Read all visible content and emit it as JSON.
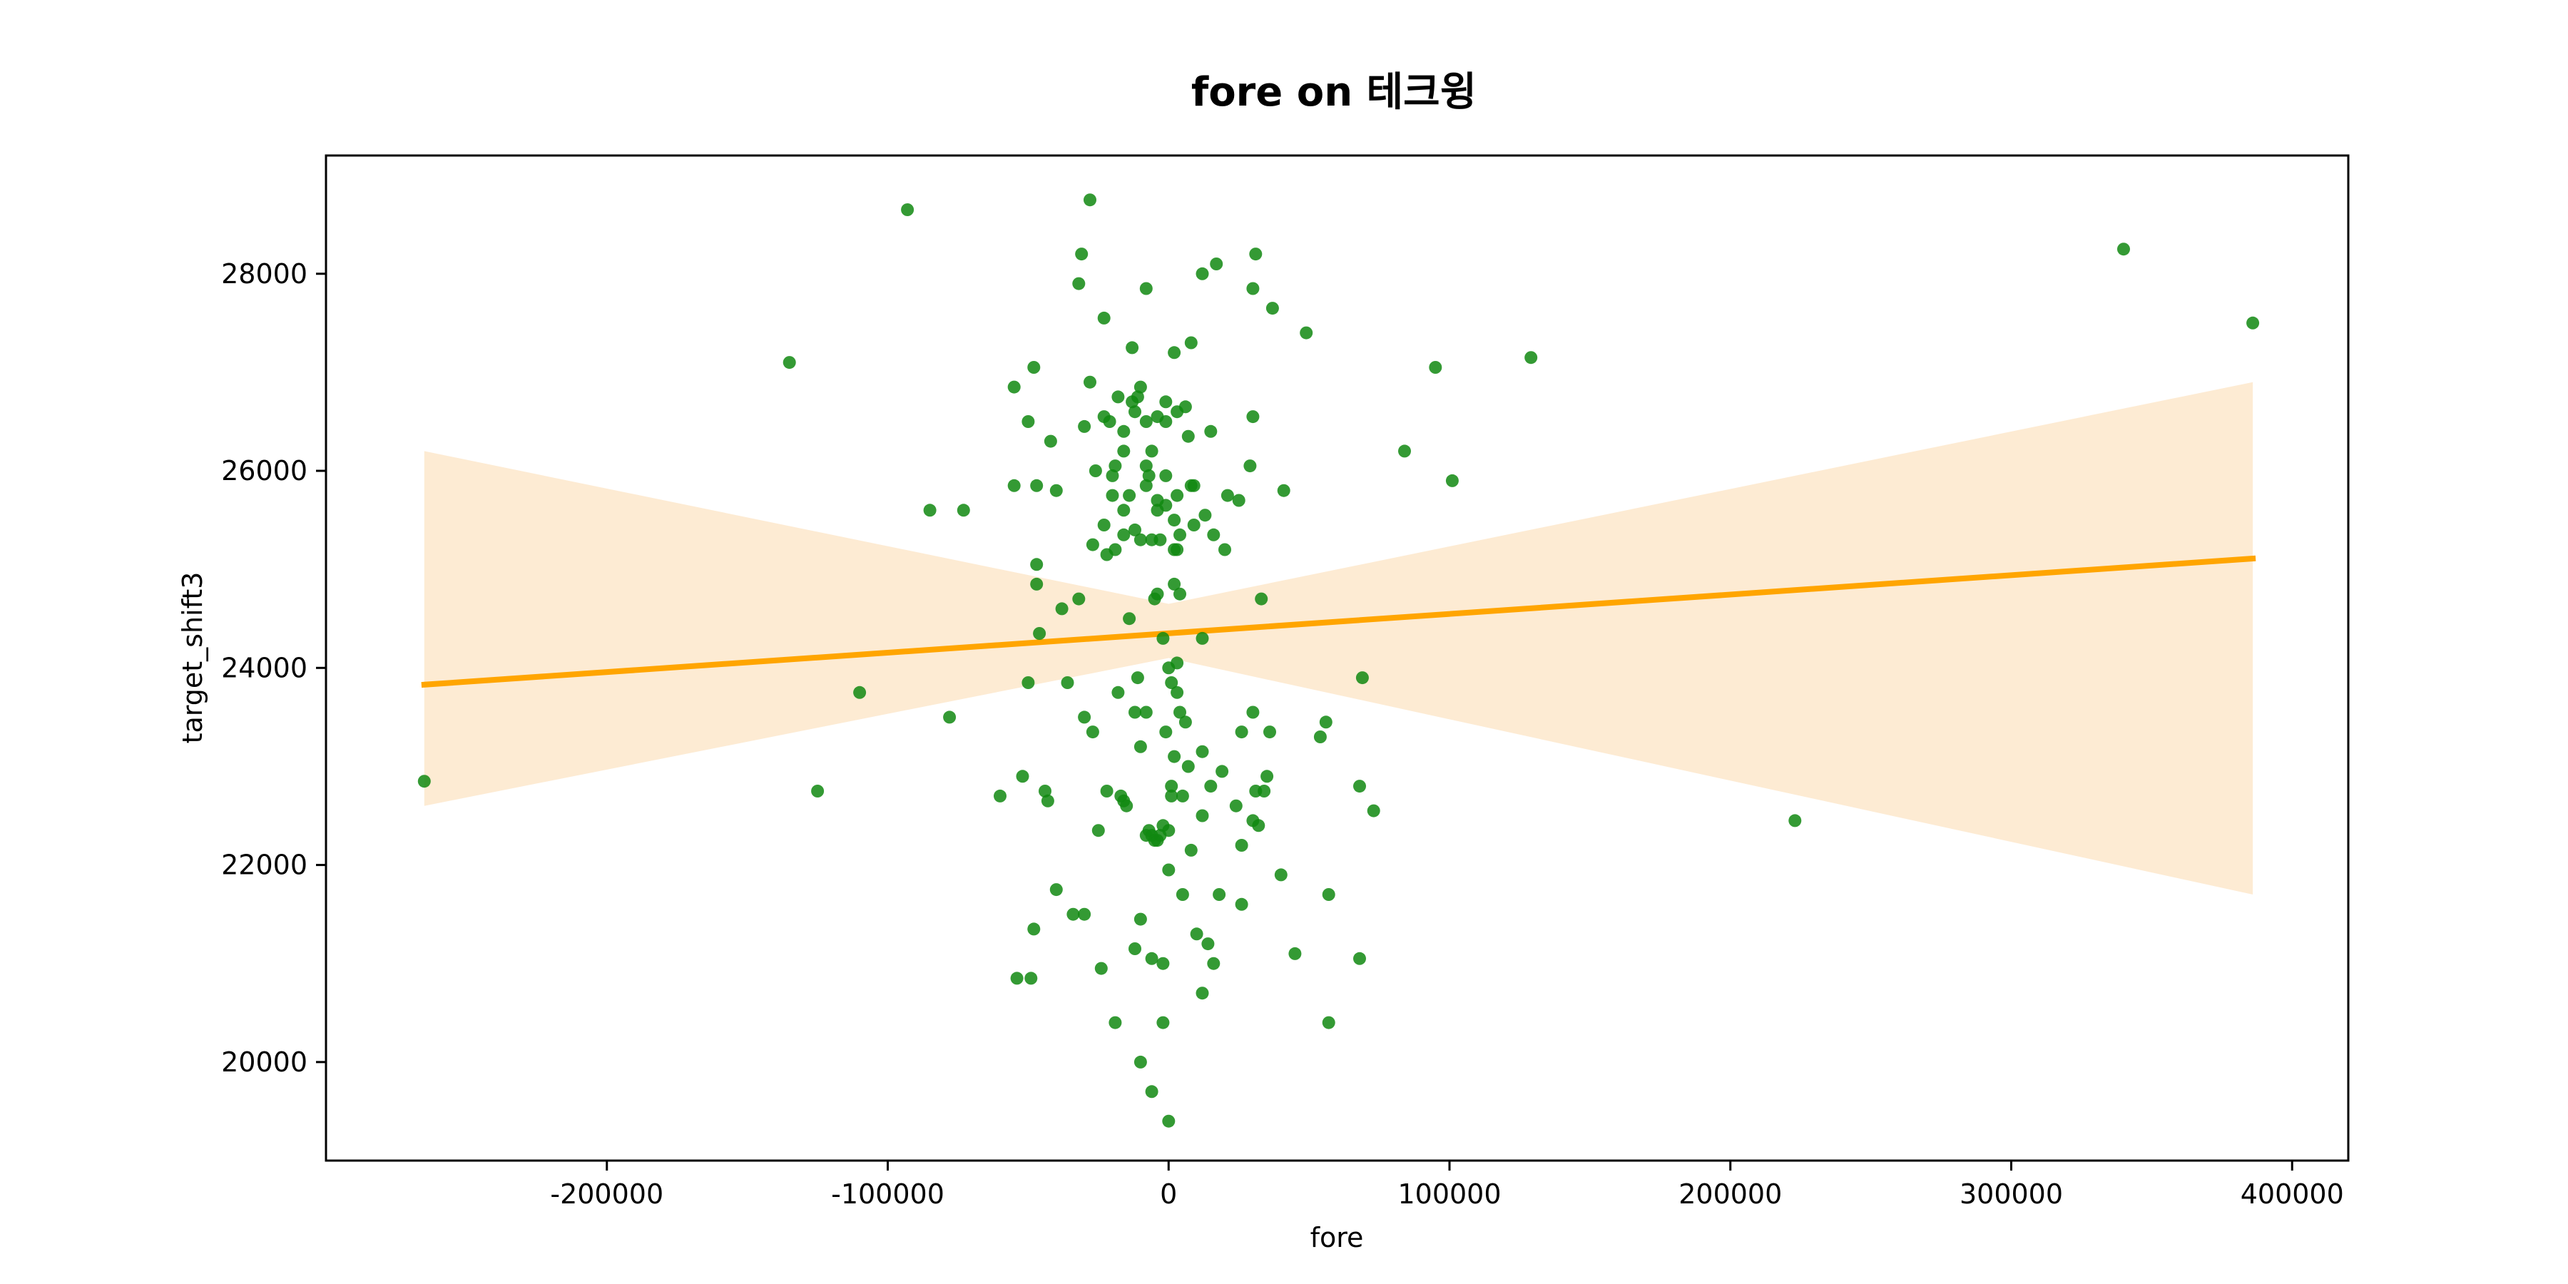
{
  "chart_data": {
    "type": "scatter",
    "title": "fore on 테크윙",
    "xlabel": "fore",
    "ylabel": "target_shift3",
    "xlim": [
      -300000,
      420000
    ],
    "ylim": [
      19000,
      29200
    ],
    "xticks": [
      -200000,
      -100000,
      0,
      100000,
      200000,
      300000,
      400000
    ],
    "yticks": [
      20000,
      22000,
      24000,
      26000,
      28000
    ],
    "grid": false,
    "legend": "none",
    "colors": {
      "points": "#118811",
      "line": "#FFA500",
      "band": "#FDEBD3"
    },
    "regression": {
      "x": [
        -265000,
        386000
      ],
      "y": [
        23830,
        25110
      ]
    },
    "confidence_band": {
      "x": [
        -265000,
        0,
        386000
      ],
      "upper": [
        26200,
        24650,
        26900
      ],
      "lower": [
        22600,
        24100,
        21700
      ]
    },
    "points": [
      [
        -265000,
        22850
      ],
      [
        -135000,
        27100
      ],
      [
        -125000,
        22750
      ],
      [
        -110000,
        23750
      ],
      [
        -93000,
        28650
      ],
      [
        -85000,
        25600
      ],
      [
        -78000,
        23500
      ],
      [
        -73000,
        25600
      ],
      [
        -60000,
        22700
      ],
      [
        -55000,
        26850
      ],
      [
        -55000,
        25850
      ],
      [
        -54000,
        20850
      ],
      [
        -52000,
        22900
      ],
      [
        -50000,
        26500
      ],
      [
        -50000,
        23850
      ],
      [
        -49000,
        20850
      ],
      [
        -48000,
        27050
      ],
      [
        -48000,
        21350
      ],
      [
        -47000,
        25850
      ],
      [
        -47000,
        25050
      ],
      [
        -47000,
        24850
      ],
      [
        -46000,
        24350
      ],
      [
        -44000,
        22750
      ],
      [
        -43000,
        22650
      ],
      [
        -42000,
        26300
      ],
      [
        -40000,
        25800
      ],
      [
        -40000,
        21750
      ],
      [
        -38000,
        24600
      ],
      [
        -36000,
        23850
      ],
      [
        -34000,
        21500
      ],
      [
        -32000,
        24700
      ],
      [
        -32000,
        27900
      ],
      [
        -31000,
        28200
      ],
      [
        -30000,
        26450
      ],
      [
        -30000,
        23500
      ],
      [
        -30000,
        21500
      ],
      [
        -28000,
        28750
      ],
      [
        -28000,
        26900
      ],
      [
        -27000,
        25250
      ],
      [
        -27000,
        23350
      ],
      [
        -26000,
        26000
      ],
      [
        -25000,
        22350
      ],
      [
        -24000,
        20950
      ],
      [
        -23000,
        27550
      ],
      [
        -23000,
        26550
      ],
      [
        -23000,
        25450
      ],
      [
        -22000,
        25150
      ],
      [
        -22000,
        22750
      ],
      [
        -21000,
        26500
      ],
      [
        -20000,
        25750
      ],
      [
        -20000,
        25950
      ],
      [
        -19000,
        26050
      ],
      [
        -19000,
        25200
      ],
      [
        -19000,
        20400
      ],
      [
        -18000,
        26750
      ],
      [
        -18000,
        23750
      ],
      [
        -17000,
        22700
      ],
      [
        -16000,
        26400
      ],
      [
        -16000,
        26200
      ],
      [
        -16000,
        25600
      ],
      [
        -16000,
        25350
      ],
      [
        -16000,
        22650
      ],
      [
        -15000,
        22600
      ],
      [
        -14000,
        25750
      ],
      [
        -14000,
        24500
      ],
      [
        -13000,
        27250
      ],
      [
        -13000,
        26700
      ],
      [
        -12000,
        26600
      ],
      [
        -12000,
        25400
      ],
      [
        -12000,
        23550
      ],
      [
        -12000,
        21150
      ],
      [
        -11000,
        26750
      ],
      [
        -11000,
        23900
      ],
      [
        -10000,
        26850
      ],
      [
        -10000,
        25300
      ],
      [
        -10000,
        23200
      ],
      [
        -10000,
        21450
      ],
      [
        -10000,
        20000
      ],
      [
        -8000,
        27850
      ],
      [
        -8000,
        26500
      ],
      [
        -8000,
        26050
      ],
      [
        -8000,
        25850
      ],
      [
        -8000,
        23550
      ],
      [
        -8000,
        22300
      ],
      [
        -7000,
        25950
      ],
      [
        -7000,
        22350
      ],
      [
        -6000,
        26200
      ],
      [
        -6000,
        25300
      ],
      [
        -6000,
        22300
      ],
      [
        -6000,
        21050
      ],
      [
        -6000,
        19700
      ],
      [
        -5000,
        24700
      ],
      [
        -5000,
        22250
      ],
      [
        -4000,
        26550
      ],
      [
        -4000,
        25700
      ],
      [
        -4000,
        25600
      ],
      [
        -4000,
        24750
      ],
      [
        -4000,
        22250
      ],
      [
        -3000,
        25300
      ],
      [
        -3000,
        22300
      ],
      [
        -2000,
        24300
      ],
      [
        -2000,
        22400
      ],
      [
        -2000,
        21000
      ],
      [
        -2000,
        20400
      ],
      [
        -1000,
        26700
      ],
      [
        -1000,
        26500
      ],
      [
        -1000,
        25950
      ],
      [
        -1000,
        25650
      ],
      [
        -1000,
        23350
      ],
      [
        0,
        24000
      ],
      [
        0,
        22350
      ],
      [
        0,
        21950
      ],
      [
        0,
        19400
      ],
      [
        1000,
        23850
      ],
      [
        1000,
        22800
      ],
      [
        1000,
        22700
      ],
      [
        2000,
        27200
      ],
      [
        2000,
        25500
      ],
      [
        2000,
        25200
      ],
      [
        2000,
        24850
      ],
      [
        2000,
        23100
      ],
      [
        3000,
        26600
      ],
      [
        3000,
        25750
      ],
      [
        3000,
        25200
      ],
      [
        3000,
        24050
      ],
      [
        3000,
        23750
      ],
      [
        4000,
        25350
      ],
      [
        4000,
        24750
      ],
      [
        4000,
        23550
      ],
      [
        5000,
        22700
      ],
      [
        5000,
        21700
      ],
      [
        6000,
        26650
      ],
      [
        6000,
        23450
      ],
      [
        7000,
        26350
      ],
      [
        7000,
        23000
      ],
      [
        8000,
        27300
      ],
      [
        8000,
        25850
      ],
      [
        8000,
        22150
      ],
      [
        9000,
        25850
      ],
      [
        9000,
        25450
      ],
      [
        10000,
        21300
      ],
      [
        12000,
        28000
      ],
      [
        12000,
        24300
      ],
      [
        12000,
        23150
      ],
      [
        12000,
        22500
      ],
      [
        12000,
        20700
      ],
      [
        13000,
        25550
      ],
      [
        14000,
        21200
      ],
      [
        15000,
        26400
      ],
      [
        15000,
        22800
      ],
      [
        16000,
        25350
      ],
      [
        16000,
        21000
      ],
      [
        17000,
        28100
      ],
      [
        18000,
        21700
      ],
      [
        19000,
        22950
      ],
      [
        20000,
        25200
      ],
      [
        21000,
        25750
      ],
      [
        24000,
        22600
      ],
      [
        25000,
        25700
      ],
      [
        26000,
        23350
      ],
      [
        26000,
        22200
      ],
      [
        26000,
        21600
      ],
      [
        29000,
        26050
      ],
      [
        30000,
        27850
      ],
      [
        30000,
        26550
      ],
      [
        30000,
        23550
      ],
      [
        30000,
        22450
      ],
      [
        31000,
        28200
      ],
      [
        31000,
        22750
      ],
      [
        32000,
        22400
      ],
      [
        33000,
        24700
      ],
      [
        34000,
        22750
      ],
      [
        35000,
        22900
      ],
      [
        36000,
        23350
      ],
      [
        37000,
        27650
      ],
      [
        40000,
        21900
      ],
      [
        41000,
        25800
      ],
      [
        45000,
        21100
      ],
      [
        49000,
        27400
      ],
      [
        54000,
        23300
      ],
      [
        56000,
        23450
      ],
      [
        57000,
        21700
      ],
      [
        57000,
        20400
      ],
      [
        68000,
        22800
      ],
      [
        68000,
        21050
      ],
      [
        69000,
        23900
      ],
      [
        73000,
        22550
      ],
      [
        84000,
        26200
      ],
      [
        95000,
        27050
      ],
      [
        101000,
        25900
      ],
      [
        129000,
        27150
      ],
      [
        223000,
        22450
      ],
      [
        340000,
        28250
      ],
      [
        386000,
        27500
      ]
    ]
  }
}
